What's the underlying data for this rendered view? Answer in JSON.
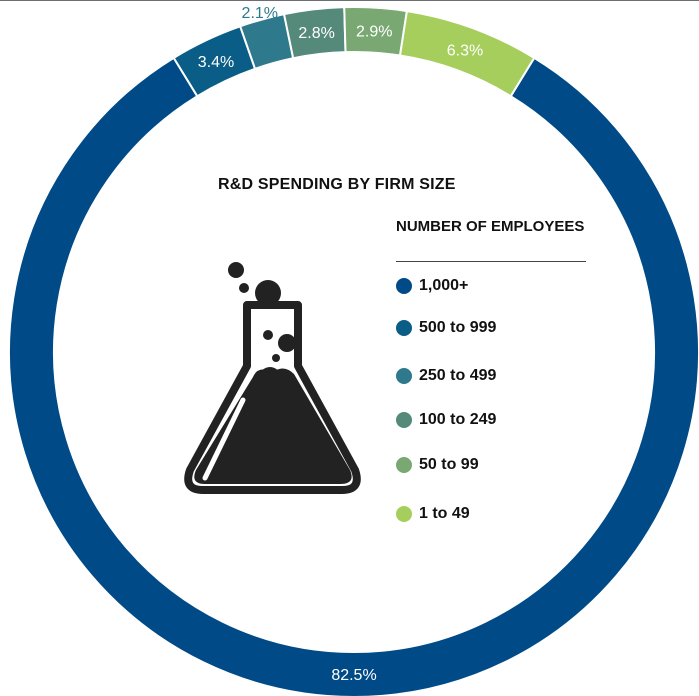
{
  "chart_data": {
    "type": "pie",
    "style": "donut",
    "title": "R&D SPENDING BY FIRM SIZE",
    "legend_title": "NUMBER OF EMPLOYEES",
    "legend_placement": "center",
    "categories": [
      "1,000+",
      "500 to 999",
      "250 to 499",
      "100 to 249",
      "50 to 99",
      "1 to 49"
    ],
    "values": [
      82.5,
      3.4,
      2.1,
      2.8,
      2.9,
      6.3
    ],
    "value_labels": [
      "82.5%",
      "3.4%",
      "2.1%",
      "2.8%",
      "2.9%",
      "6.3%"
    ],
    "colors": [
      "#004b87",
      "#0a5d87",
      "#2e7a8c",
      "#558a7b",
      "#79a873",
      "#a6ce5c"
    ]
  },
  "icon": "flask-icon"
}
